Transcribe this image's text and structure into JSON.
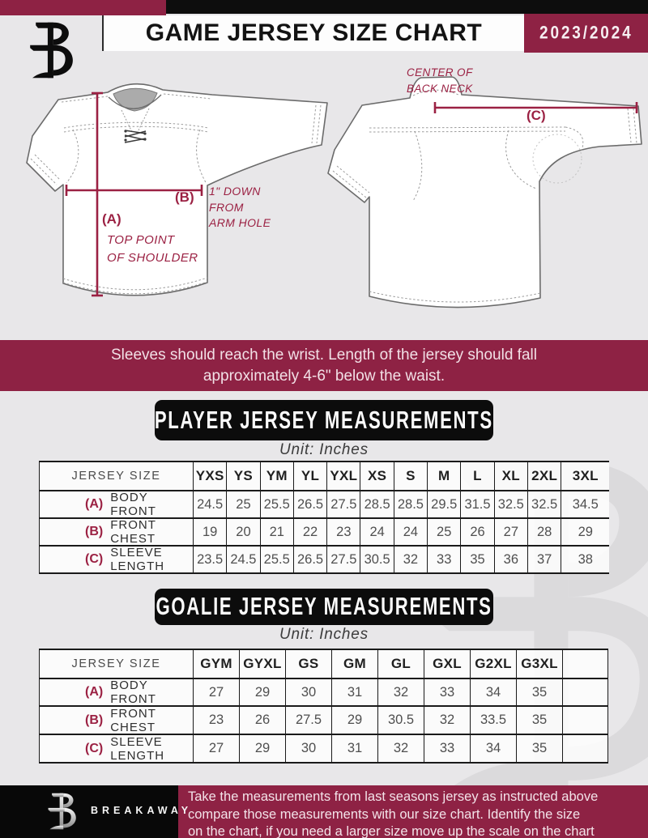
{
  "header": {
    "title": "GAME JERSEY SIZE CHART",
    "season": "2023/2024"
  },
  "diagram": {
    "front": {
      "a_label": "(A)",
      "a_desc": "TOP POINT\nOF SHOULDER",
      "b_label": "(B)",
      "b_desc": "1\" DOWN\nFROM\nARM HOLE"
    },
    "back": {
      "c_label": "(C)",
      "c_desc": "CENTER OF\nBACK NECK"
    }
  },
  "notice": "Sleeves should reach the wrist. Length of the jersey should fall\napproximately 4-6\" below the waist.",
  "player_section": {
    "title": "PLAYER JERSEY MEASUREMENTS",
    "unit": "Unit: Inches",
    "table": {
      "label_header": "JERSEY SIZE",
      "sizes": [
        "YXS",
        "YS",
        "YM",
        "YL",
        "YXL",
        "XS",
        "S",
        "M",
        "L",
        "XL",
        "2XL",
        "3XL"
      ],
      "rows": [
        {
          "key": "(A)",
          "label": "BODY FRONT",
          "values": [
            "24.5",
            "25",
            "25.5",
            "26.5",
            "27.5",
            "28.5",
            "28.5",
            "29.5",
            "31.5",
            "32.5",
            "32.5",
            "34.5"
          ]
        },
        {
          "key": "(B)",
          "label": "FRONT CHEST",
          "values": [
            "19",
            "20",
            "21",
            "22",
            "23",
            "24",
            "24",
            "25",
            "26",
            "27",
            "28",
            "29"
          ]
        },
        {
          "key": "(C)",
          "label": "SLEEVE LENGTH",
          "values": [
            "23.5",
            "24.5",
            "25.5",
            "26.5",
            "27.5",
            "30.5",
            "32",
            "33",
            "35",
            "36",
            "37",
            "38"
          ]
        }
      ]
    }
  },
  "goalie_section": {
    "title": "GOALIE JERSEY MEASUREMENTS",
    "unit": "Unit: Inches",
    "table": {
      "label_header": "JERSEY SIZE",
      "sizes": [
        "GYM",
        "GYXL",
        "GS",
        "GM",
        "GL",
        "GXL",
        "G2XL",
        "G3XL",
        ""
      ],
      "rows": [
        {
          "key": "(A)",
          "label": "BODY FRONT",
          "values": [
            "27",
            "29",
            "30",
            "31",
            "32",
            "33",
            "34",
            "35",
            ""
          ]
        },
        {
          "key": "(B)",
          "label": "FRONT CHEST",
          "values": [
            "23",
            "26",
            "27.5",
            "29",
            "30.5",
            "32",
            "33.5",
            "35",
            ""
          ]
        },
        {
          "key": "(C)",
          "label": "SLEEVE LENGTH",
          "values": [
            "27",
            "29",
            "30",
            "31",
            "32",
            "33",
            "34",
            "35",
            ""
          ]
        }
      ]
    }
  },
  "footer": {
    "brand": "BREAKAWAY",
    "note": "Take the measurements from last seasons jersey as instructed above\ncompare those measurements  with our size chart. Identify the size\non the chart, if you need a larger size move up the scale on the chart"
  },
  "colors": {
    "maroon": "#8E2244",
    "annotation_maroon": "#9B2143",
    "black": "#0D0D0D",
    "background": "#E8E7E9"
  }
}
